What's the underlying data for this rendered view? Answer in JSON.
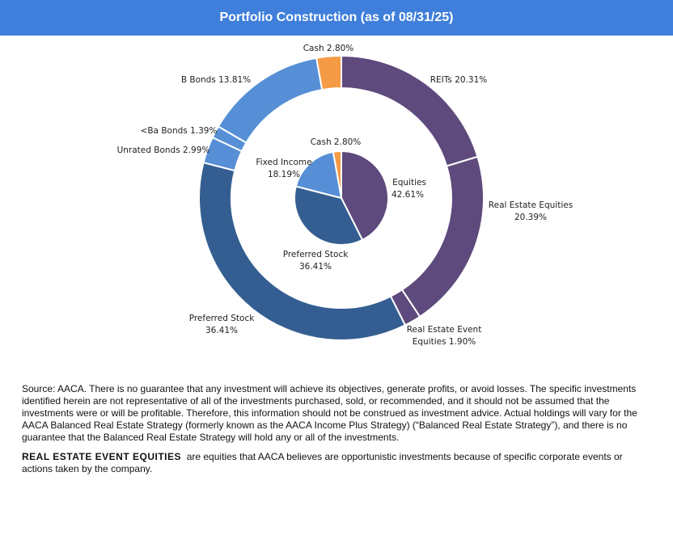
{
  "header": {
    "title": "Portfolio Construction (as of 08/31/25)"
  },
  "chart_data": {
    "type": "pie",
    "title": "Portfolio Construction (as of 08/31/25)",
    "rings": [
      {
        "ring": "inner",
        "slices": [
          {
            "label": "Equities",
            "value": 42.61,
            "label_text": "42.61%",
            "color": "#5e4a7c"
          },
          {
            "label": "Preferred Stock",
            "value": 36.41,
            "label_text": "36.41%",
            "color": "#345e91"
          },
          {
            "label": "Fixed Income",
            "value": 18.19,
            "label_text": "18.19%",
            "color": "#578fd6"
          },
          {
            "label": "Cash",
            "value": 2.8,
            "label_text": "Cash 2.80%",
            "color": "#f59a45"
          }
        ]
      },
      {
        "ring": "outer",
        "slices": [
          {
            "label": "REITs",
            "value": 20.31,
            "label_text": "REITs  20.31%",
            "color": "#5e4a7c"
          },
          {
            "label": "Real Estate Equities",
            "value": 20.39,
            "label_text": "20.39%",
            "color": "#5e4a7c"
          },
          {
            "label": "Real Estate Event Equities",
            "value": 1.9,
            "label_text": "Equities 1.90%",
            "color": "#5e4a7c"
          },
          {
            "label": "Preferred Stock",
            "value": 36.41,
            "label_text": "36.41%",
            "color": "#345e91"
          },
          {
            "label": "Unrated Bonds",
            "value": 2.99,
            "label_text": "Unrated Bonds 2.99%",
            "color": "#578fd6"
          },
          {
            "label": "<Ba Bonds",
            "value": 1.39,
            "label_text": "<Ba Bonds 1.39%",
            "color": "#578fd6"
          },
          {
            "label": "B Bonds",
            "value": 13.81,
            "label_text": "B Bonds 13.81%",
            "color": "#578fd6"
          },
          {
            "label": "Cash",
            "value": 2.8,
            "label_text": "Cash 2.80%",
            "color": "#f59a45"
          }
        ]
      }
    ],
    "extra_label_lines": {
      "equities": "Equities",
      "preferred": "Preferred Stock",
      "fixed_income": "Fixed Income",
      "real_estate_equities": "Real Estate Equities",
      "real_estate_event": "Real Estate Event"
    }
  },
  "notes": {
    "source": "Source: AACA.  There is no guarantee that any investment will achieve its objectives, generate profits, or avoid losses. The specific investments identified herein are not representative of all of the investments purchased, sold, or recommended, and it should not be assumed that the investments were or will be profitable. Therefore, this information should not be construed as investment advice. Actual holdings will vary for the AACA  Balanced Real Estate Strategy (formerly known as the AACA  Income Plus Strategy) (“Balanced Real Estate Strategy”),  and there is no guarantee that the Balanced Real Estate Strategy will hold any  or all of the investments.",
    "definition_term": "REAL ESTATE EVENT EQUITIES",
    "definition_text": "are equities that AACA  believes are opportunistic investments because of specific corporate events or actions taken by the company."
  }
}
